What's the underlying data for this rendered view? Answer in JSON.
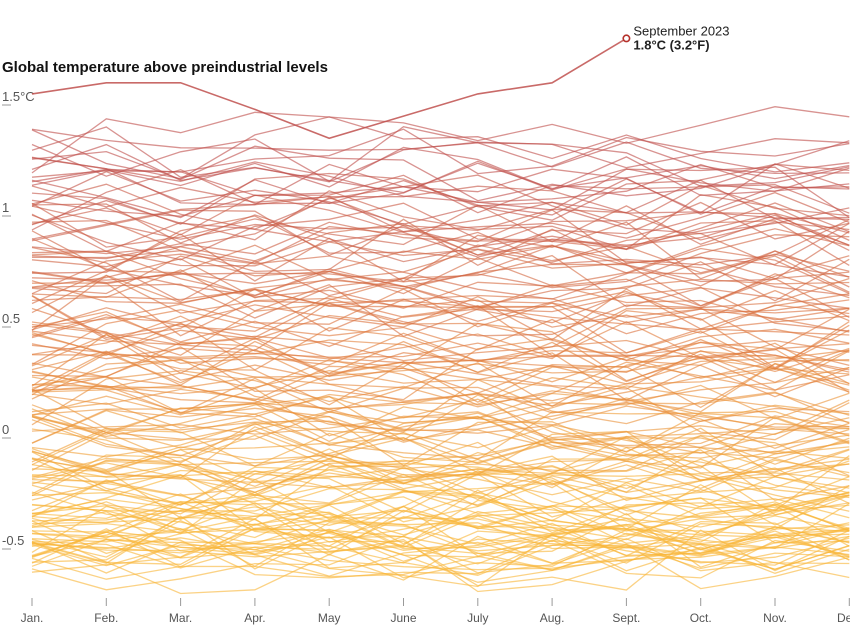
{
  "chart_data": {
    "type": "line",
    "title": "Global temperature above preindustrial levels",
    "xlabel": "",
    "ylabel": "",
    "categories": [
      "Jan.",
      "Feb.",
      "Mar.",
      "Apr.",
      "May",
      "June",
      "July",
      "Aug.",
      "Sept.",
      "Oct.",
      "Nov.",
      "Dec."
    ],
    "y_tick_labels": [
      "1.5°C",
      "1",
      "0.5",
      "0",
      "-0.5"
    ],
    "y_tick_values": [
      1.5,
      1,
      0.5,
      0,
      -0.5
    ],
    "ylim": [
      -0.75,
      1.9
    ],
    "grid": false,
    "legend": "none",
    "color_low": "#f9b73a",
    "color_mid": "#e07a3f",
    "color_high": "#c0504d",
    "annotation": {
      "line1": "September 2023",
      "line2": "1.8°C (3.2°F)",
      "x": "Sept.",
      "y": 1.8
    },
    "series_count": 174,
    "highlight_series": {
      "name": "2023",
      "values": [
        1.55,
        1.6,
        1.6,
        1.48,
        1.35,
        1.45,
        1.55,
        1.6,
        1.8,
        null,
        null,
        null
      ]
    },
    "note": ""
  }
}
